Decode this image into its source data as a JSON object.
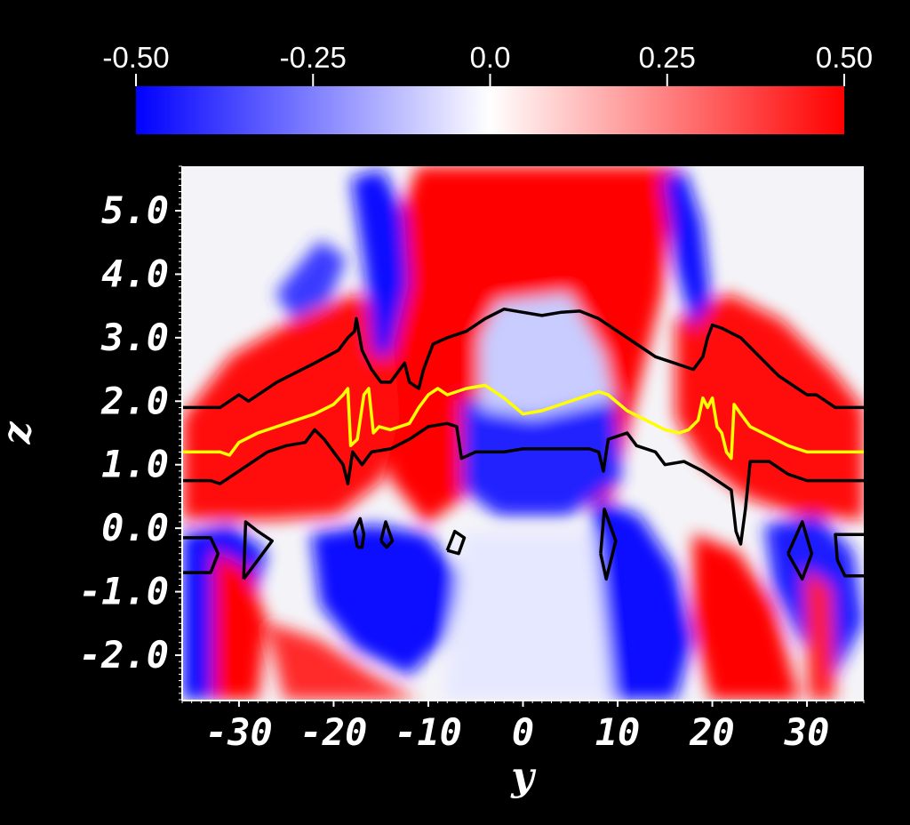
{
  "chart_data": {
    "type": "heatmap",
    "title": "",
    "xlabel": "y",
    "ylabel": "z",
    "xlim": [
      -36,
      36
    ],
    "ylim": [
      -2.7,
      5.7
    ],
    "x_ticks": [
      "-30",
      "-20",
      "-10",
      "0",
      "10",
      "20",
      "30"
    ],
    "x_tick_values": [
      -30,
      -20,
      -10,
      0,
      10,
      20,
      30
    ],
    "y_ticks": [
      "5.0",
      "4.0",
      "3.0",
      "2.0",
      "1.0",
      "0.0",
      "-1.0",
      "-2.0"
    ],
    "y_tick_values": [
      5,
      4,
      3,
      2,
      1,
      0,
      -1,
      -2
    ],
    "colorbar": {
      "ticks": [
        "-0.50",
        "-0.25",
        "0.0",
        "0.25",
        "0.50"
      ],
      "tick_values": [
        -0.5,
        -0.25,
        0.0,
        0.25,
        0.5
      ],
      "range": [
        -0.5,
        0.5
      ],
      "colors": {
        "min": "#0000ff",
        "mid": "#ffffff",
        "max": "#ff0000"
      },
      "placement": "top"
    },
    "contours": [
      {
        "name": "upper contour",
        "color": "#000000",
        "points": [
          [
            -36,
            1.9
          ],
          [
            -32,
            1.9
          ],
          [
            -30,
            2.1
          ],
          [
            -29,
            2.0
          ],
          [
            -26,
            2.3
          ],
          [
            -22,
            2.6
          ],
          [
            -19.5,
            2.8
          ],
          [
            -18.5,
            3.0
          ],
          [
            -17.8,
            3.1
          ],
          [
            -17.6,
            3.3
          ],
          [
            -17,
            2.8
          ],
          [
            -16,
            2.5
          ],
          [
            -15,
            2.3
          ],
          [
            -14,
            2.3
          ],
          [
            -13,
            2.5
          ],
          [
            -12.5,
            2.6
          ],
          [
            -12,
            2.3
          ],
          [
            -11,
            2.2
          ],
          [
            -10.5,
            2.5
          ],
          [
            -9.5,
            2.9
          ],
          [
            -8,
            3.0
          ],
          [
            -6,
            3.1
          ],
          [
            -4,
            3.3
          ],
          [
            -2,
            3.45
          ],
          [
            0,
            3.4
          ],
          [
            2,
            3.35
          ],
          [
            4,
            3.4
          ],
          [
            6,
            3.42
          ],
          [
            8,
            3.3
          ],
          [
            10,
            3.1
          ],
          [
            12,
            2.9
          ],
          [
            14,
            2.7
          ],
          [
            16,
            2.6
          ],
          [
            18,
            2.5
          ],
          [
            19,
            2.7
          ],
          [
            19.5,
            3.0
          ],
          [
            20,
            3.2
          ],
          [
            21,
            3.15
          ],
          [
            23,
            3.0
          ],
          [
            25,
            2.7
          ],
          [
            27,
            2.4
          ],
          [
            29,
            2.2
          ],
          [
            30,
            2.1
          ],
          [
            31,
            2.1
          ],
          [
            33,
            1.9
          ],
          [
            36,
            1.9
          ]
        ]
      },
      {
        "name": "middle contour",
        "color": "#ffff00",
        "points": [
          [
            -36,
            1.2
          ],
          [
            -32,
            1.2
          ],
          [
            -31,
            1.15
          ],
          [
            -30,
            1.35
          ],
          [
            -28,
            1.5
          ],
          [
            -26,
            1.6
          ],
          [
            -24,
            1.7
          ],
          [
            -22,
            1.8
          ],
          [
            -20,
            1.95
          ],
          [
            -19,
            2.1
          ],
          [
            -18.5,
            2.2
          ],
          [
            -18.2,
            1.3
          ],
          [
            -17.5,
            1.4
          ],
          [
            -16.8,
            2.1
          ],
          [
            -16.3,
            2.2
          ],
          [
            -15.8,
            1.5
          ],
          [
            -15.2,
            1.6
          ],
          [
            -14,
            1.55
          ],
          [
            -12,
            1.65
          ],
          [
            -11,
            1.9
          ],
          [
            -10,
            2.1
          ],
          [
            -9,
            2.2
          ],
          [
            -8,
            2.1
          ],
          [
            -6,
            2.2
          ],
          [
            -4,
            2.25
          ],
          [
            -2,
            2.05
          ],
          [
            0,
            1.8
          ],
          [
            2,
            1.85
          ],
          [
            4,
            1.95
          ],
          [
            6,
            2.05
          ],
          [
            8,
            2.15
          ],
          [
            9,
            2.1
          ],
          [
            11,
            1.85
          ],
          [
            13,
            1.7
          ],
          [
            15,
            1.55
          ],
          [
            16.5,
            1.5
          ],
          [
            17.5,
            1.55
          ],
          [
            18.5,
            1.7
          ],
          [
            19,
            2.05
          ],
          [
            19.5,
            1.9
          ],
          [
            20,
            2.05
          ],
          [
            20.5,
            1.6
          ],
          [
            21,
            1.5
          ],
          [
            21.5,
            1.2
          ],
          [
            22,
            1.1
          ],
          [
            22.3,
            1.95
          ],
          [
            23,
            1.8
          ],
          [
            24,
            1.6
          ],
          [
            26,
            1.45
          ],
          [
            28,
            1.3
          ],
          [
            30,
            1.2
          ],
          [
            32,
            1.2
          ],
          [
            36,
            1.2
          ]
        ]
      },
      {
        "name": "lower contour",
        "color": "#000000",
        "points": [
          [
            -36,
            0.75
          ],
          [
            -33,
            0.75
          ],
          [
            -32,
            0.7
          ],
          [
            -31,
            0.8
          ],
          [
            -29,
            1.0
          ],
          [
            -27,
            1.2
          ],
          [
            -25,
            1.3
          ],
          [
            -23,
            1.35
          ],
          [
            -22,
            1.55
          ],
          [
            -21,
            1.4
          ],
          [
            -20,
            1.2
          ],
          [
            -19,
            1.0
          ],
          [
            -18.5,
            0.7
          ],
          [
            -18,
            1.2
          ],
          [
            -17,
            1.0
          ],
          [
            -16,
            1.2
          ],
          [
            -14,
            1.25
          ],
          [
            -12,
            1.4
          ],
          [
            -11,
            1.5
          ],
          [
            -10,
            1.6
          ],
          [
            -8,
            1.65
          ],
          [
            -7,
            1.6
          ],
          [
            -6.5,
            1.1
          ],
          [
            -5,
            1.2
          ],
          [
            -2,
            1.2
          ],
          [
            0,
            1.25
          ],
          [
            4,
            1.25
          ],
          [
            7,
            1.25
          ],
          [
            8,
            1.2
          ],
          [
            8.5,
            0.9
          ],
          [
            9,
            1.4
          ],
          [
            11,
            1.5
          ],
          [
            12,
            1.3
          ],
          [
            14,
            1.2
          ],
          [
            15,
            1.0
          ],
          [
            17,
            1.05
          ],
          [
            19,
            0.9
          ],
          [
            21,
            0.7
          ],
          [
            22,
            0.6
          ],
          [
            22.5,
            -0.05
          ],
          [
            23,
            -0.25
          ],
          [
            23.5,
            0.3
          ],
          [
            24,
            1.05
          ],
          [
            26,
            1.05
          ],
          [
            28,
            0.85
          ],
          [
            30,
            0.75
          ],
          [
            33,
            0.75
          ],
          [
            36,
            0.75
          ]
        ]
      },
      {
        "name": "closed contours",
        "color": "#000000",
        "loops": [
          [
            [
              -36,
              -0.15
            ],
            [
              -33,
              -0.15
            ],
            [
              -32.2,
              -0.4
            ],
            [
              -33,
              -0.7
            ],
            [
              -36,
              -0.7
            ]
          ],
          [
            [
              -29.5,
              -0.8
            ],
            [
              -29.3,
              0.1
            ],
            [
              -28,
              -0.05
            ],
            [
              -26.5,
              -0.2
            ],
            [
              -28,
              -0.5
            ],
            [
              -29.5,
              -0.8
            ]
          ],
          [
            [
              -17.5,
              -0.3
            ],
            [
              -17.8,
              -0.05
            ],
            [
              -17.2,
              0.15
            ],
            [
              -16.8,
              -0.1
            ],
            [
              -17,
              -0.3
            ],
            [
              -17.5,
              -0.3
            ]
          ],
          [
            [
              -15,
              -0.2
            ],
            [
              -14.5,
              0.1
            ],
            [
              -13.8,
              -0.2
            ],
            [
              -14.4,
              -0.3
            ],
            [
              -15,
              -0.2
            ]
          ],
          [
            [
              -8,
              -0.35
            ],
            [
              -7.2,
              -0.05
            ],
            [
              -6.2,
              -0.15
            ],
            [
              -6.8,
              -0.4
            ],
            [
              -8,
              -0.35
            ]
          ],
          [
            [
              8.2,
              -0.4
            ],
            [
              8.6,
              0.3
            ],
            [
              9.8,
              -0.2
            ],
            [
              8.8,
              -0.8
            ],
            [
              8.2,
              -0.4
            ]
          ],
          [
            [
              28,
              -0.4
            ],
            [
              29.5,
              0.1
            ],
            [
              30.5,
              -0.4
            ],
            [
              29.5,
              -0.8
            ],
            [
              28,
              -0.4
            ]
          ],
          [
            [
              36,
              -0.1
            ],
            [
              33,
              -0.1
            ],
            [
              33.2,
              -0.5
            ],
            [
              34,
              -0.75
            ],
            [
              36,
              -0.75
            ]
          ]
        ]
      }
    ]
  }
}
